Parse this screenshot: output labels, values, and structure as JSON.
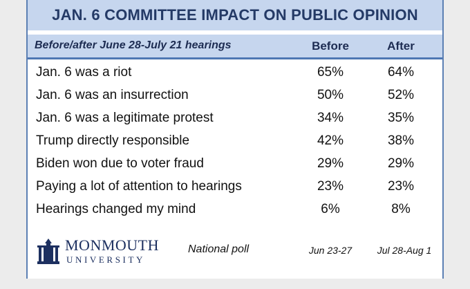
{
  "chart_data": {
    "type": "table",
    "title": "JAN. 6 COMMITTEE IMPACT ON PUBLIC OPINION",
    "subtitle": "Before/after June 28-July 21 hearings",
    "columns": [
      "Before",
      "After"
    ],
    "rows": [
      {
        "label": "Jan. 6 was a riot",
        "before": "65%",
        "after": "64%"
      },
      {
        "label": "Jan. 6 was an insurrection",
        "before": "50%",
        "after": "52%"
      },
      {
        "label": "Jan. 6 was a legitimate protest",
        "before": "34%",
        "after": "35%"
      },
      {
        "label": "Trump directly responsible",
        "before": "42%",
        "after": "38%"
      },
      {
        "label": "Biden won due to voter fraud",
        "before": "29%",
        "after": "29%"
      },
      {
        "label": "Paying a lot of attention to hearings",
        "before": "23%",
        "after": "23%"
      },
      {
        "label": "Hearings changed my mind",
        "before": "6%",
        "after": "8%"
      }
    ],
    "footer": {
      "logo_top": "MONMOUTH",
      "logo_bottom": "UNIVERSITY",
      "note": "National poll",
      "date_before": "Jun 23-27",
      "date_after": "Jul 28-Aug 1"
    }
  },
  "colors": {
    "header_band": "#c6d6ee",
    "title_text": "#243a66",
    "rule": "#4e77b3",
    "logo": "#1d3060"
  },
  "icons": {
    "logo": "monmouth-university-building-icon"
  }
}
